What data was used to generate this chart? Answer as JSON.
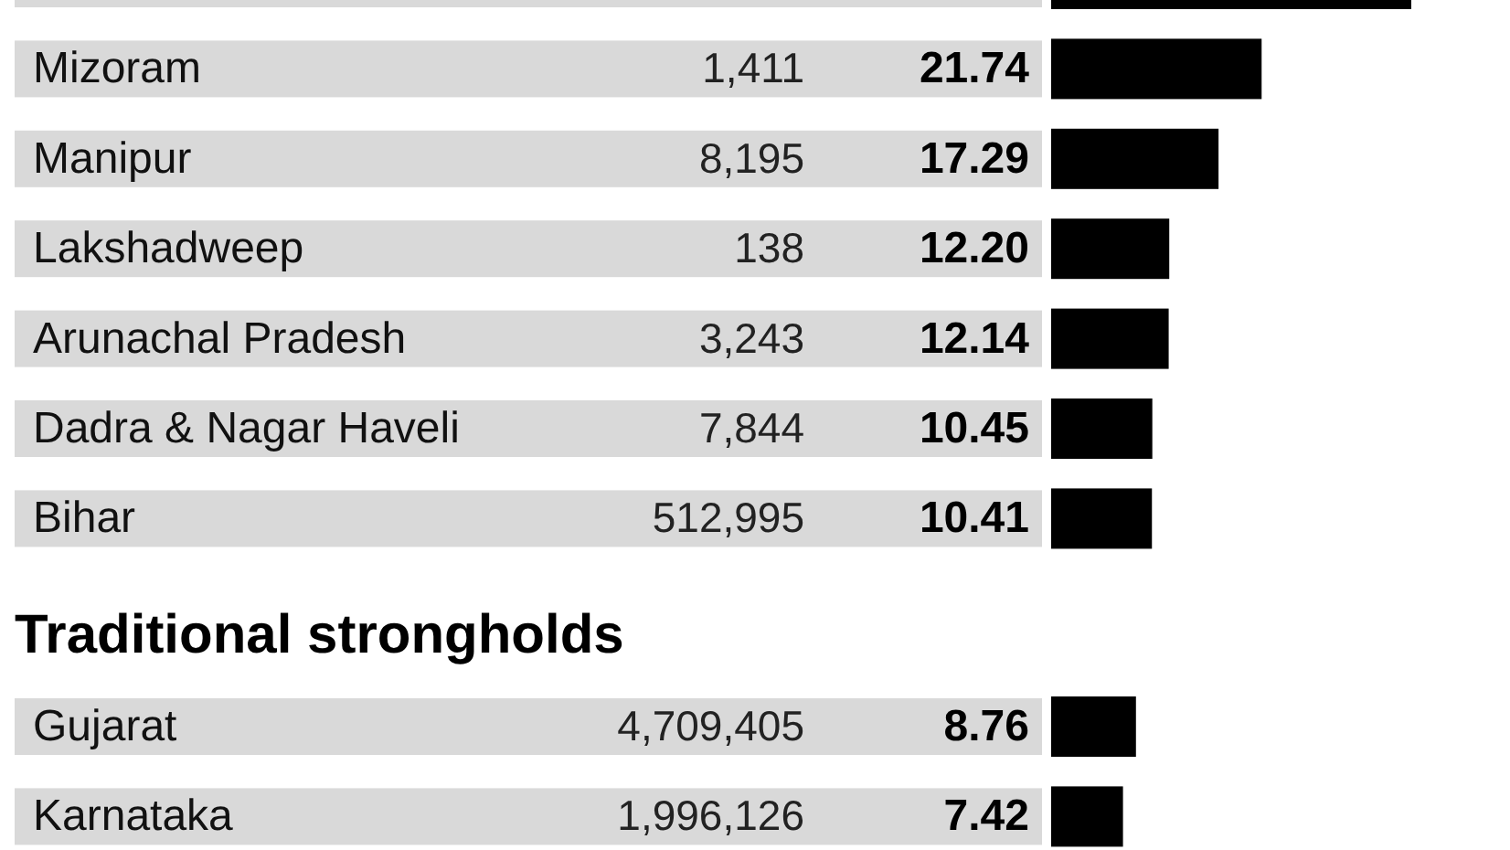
{
  "chart_data": [
    {
      "type": "bar",
      "orientation": "horizontal",
      "color": "#000000",
      "categories": [
        null,
        "Mizoram",
        "Manipur",
        "Lakshadweep",
        "Arunachal Pradesh",
        "Dadra & Nagar Haveli",
        "Bihar"
      ],
      "values": [
        37.2,
        21.74,
        17.29,
        12.2,
        12.14,
        10.45,
        10.41
      ],
      "value_labels": [
        null,
        "21.74",
        "17.29",
        "12.20",
        "12.14",
        "10.45",
        "10.41"
      ],
      "annotations": [
        "1,411",
        "8,195",
        "138",
        "3,243",
        "7,844",
        "512,995"
      ]
    },
    {
      "type": "bar",
      "orientation": "horizontal",
      "color": "#000000",
      "title": "Traditional strongholds",
      "categories": [
        "Gujarat",
        "Karnataka"
      ],
      "values": [
        8.76,
        7.42
      ],
      "value_labels": [
        "8.76",
        "7.42"
      ],
      "annotations": [
        "4,709,405",
        "1,996,126"
      ]
    }
  ]
}
